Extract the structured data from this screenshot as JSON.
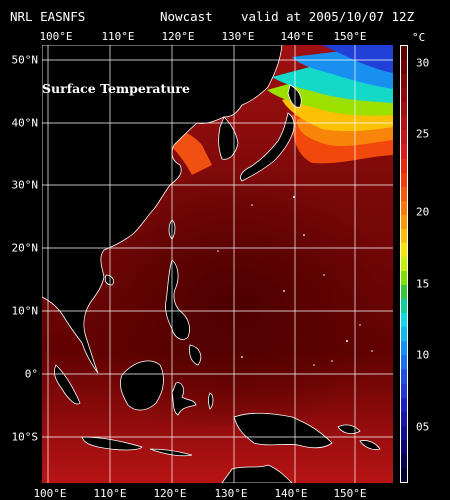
{
  "header": {
    "left": "NRL EASNFS",
    "middle": "Nowcast",
    "right": "valid at 2005/10/07 12Z"
  },
  "map": {
    "title": "Surface Temperature",
    "lon_labels": [
      "100°E",
      "110°E",
      "120°E",
      "130°E",
      "140°E",
      "150°E"
    ],
    "lat_labels": [
      "50°N",
      "40°N",
      "30°N",
      "20°N",
      "10°N",
      "0°",
      "10°S"
    ]
  },
  "colorbar": {
    "unit": "°C",
    "labels": [
      "30",
      "25",
      "20",
      "15",
      "10",
      "05"
    ],
    "colors": [
      "#5a0000",
      "#6b0505",
      "#7d0909",
      "#8e0c0c",
      "#a01010",
      "#b01414",
      "#c41818",
      "#d81c1c",
      "#ea2a10",
      "#f03c0c",
      "#f45a0a",
      "#f87a08",
      "#fc9a06",
      "#fcbf04",
      "#f6e600",
      "#c8ee00",
      "#7ee200",
      "#36c83c",
      "#10d0a0",
      "#10d8e8",
      "#10b8f0",
      "#1690f0",
      "#1c70ea",
      "#2050e0",
      "#2238d0",
      "#2020c0",
      "#1818a8",
      "#101090",
      "#080870",
      "#040450",
      "#000030"
    ]
  }
}
